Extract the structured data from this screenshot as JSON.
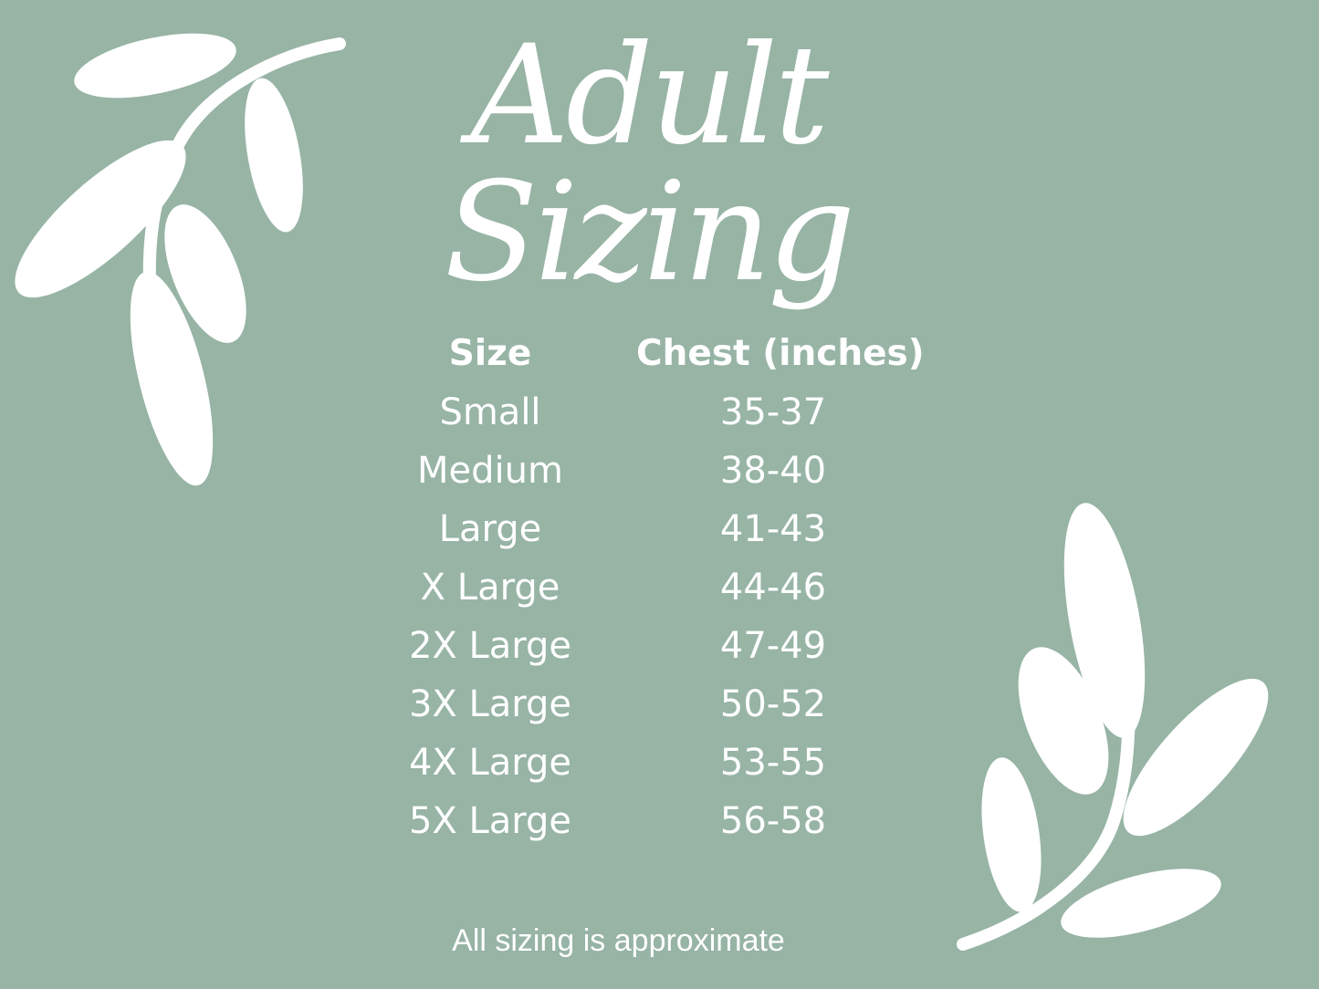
{
  "title": "Adult Sizing",
  "table": {
    "headers": [
      "Size",
      "Chest (inches)"
    ],
    "rows": [
      {
        "size": "Small",
        "chest": "35-37"
      },
      {
        "size": "Medium",
        "chest": "38-40"
      },
      {
        "size": "Large",
        "chest": "41-43"
      },
      {
        "size": "X Large",
        "chest": "44-46"
      },
      {
        "size": "2X Large",
        "chest": "47-49"
      },
      {
        "size": "3X Large",
        "chest": "50-52"
      },
      {
        "size": "4X Large",
        "chest": "53-55"
      },
      {
        "size": "5X Large",
        "chest": "56-58"
      }
    ]
  },
  "footer": "All sizing is  approximate",
  "colors": {
    "background": "#97b4a5",
    "foreground": "#ffffff"
  }
}
